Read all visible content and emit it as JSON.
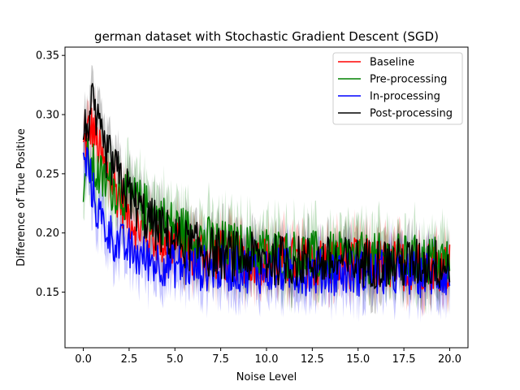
{
  "chart_data": {
    "type": "line",
    "title": "german dataset with Stochastic Gradient Descent (SGD)",
    "xlabel": "Noise Level",
    "ylabel": "Difference of True Positive",
    "xlim": [
      -1.0,
      21.0
    ],
    "ylim": [
      0.103,
      0.357
    ],
    "xticks": [
      0.0,
      2.5,
      5.0,
      7.5,
      10.0,
      12.5,
      15.0,
      17.5,
      20.0
    ],
    "xtick_labels": [
      "0.0",
      "2.5",
      "5.0",
      "7.5",
      "10.0",
      "12.5",
      "15.0",
      "17.5",
      "20.0"
    ],
    "yticks": [
      0.15,
      0.2,
      0.25,
      0.3,
      0.35
    ],
    "ytick_labels": [
      "0.15",
      "0.20",
      "0.25",
      "0.30",
      "0.35"
    ],
    "grid": false,
    "legend_position": "upper-right",
    "series": [
      {
        "name": "Baseline",
        "color": "#ff0000",
        "x": [
          0.0,
          0.25,
          0.5,
          0.75,
          1.0,
          1.5,
          2.0,
          2.5,
          3.0,
          4.0,
          5.0,
          6.0,
          7.0,
          8.0,
          9.0,
          10.0,
          11.0,
          12.0,
          13.0,
          14.0,
          15.0,
          16.0,
          17.0,
          18.0,
          19.0,
          20.0
        ],
        "values": [
          0.27,
          0.285,
          0.29,
          0.275,
          0.26,
          0.245,
          0.23,
          0.215,
          0.205,
          0.195,
          0.19,
          0.185,
          0.182,
          0.18,
          0.178,
          0.177,
          0.176,
          0.175,
          0.175,
          0.175,
          0.174,
          0.174,
          0.173,
          0.173,
          0.173,
          0.172
        ],
        "noise": 0.022,
        "band": 0.018
      },
      {
        "name": "Pre-processing",
        "color": "#008000",
        "x": [
          0.0,
          0.25,
          0.5,
          0.75,
          1.0,
          1.5,
          2.0,
          2.5,
          3.0,
          4.0,
          5.0,
          6.0,
          7.0,
          8.0,
          9.0,
          10.0,
          11.0,
          12.0,
          13.0,
          14.0,
          15.0,
          16.0,
          17.0,
          18.0,
          19.0,
          20.0
        ],
        "values": [
          0.245,
          0.26,
          0.255,
          0.25,
          0.245,
          0.24,
          0.235,
          0.23,
          0.225,
          0.215,
          0.205,
          0.198,
          0.192,
          0.188,
          0.186,
          0.184,
          0.182,
          0.181,
          0.18,
          0.179,
          0.179,
          0.178,
          0.178,
          0.177,
          0.177,
          0.176
        ],
        "noise": 0.022,
        "band": 0.022
      },
      {
        "name": "In-processing",
        "color": "#0000ff",
        "x": [
          0.0,
          0.25,
          0.5,
          0.75,
          1.0,
          1.5,
          2.0,
          2.5,
          3.0,
          4.0,
          5.0,
          6.0,
          7.0,
          8.0,
          9.0,
          10.0,
          11.0,
          12.0,
          13.0,
          14.0,
          15.0,
          16.0,
          17.0,
          18.0,
          19.0,
          20.0
        ],
        "values": [
          0.255,
          0.26,
          0.235,
          0.22,
          0.21,
          0.198,
          0.19,
          0.185,
          0.18,
          0.176,
          0.173,
          0.171,
          0.17,
          0.17,
          0.169,
          0.168,
          0.168,
          0.167,
          0.167,
          0.167,
          0.166,
          0.166,
          0.166,
          0.165,
          0.165,
          0.165
        ],
        "noise": 0.02,
        "band": 0.018
      },
      {
        "name": "Post-processing",
        "color": "#000000",
        "x": [
          0.0,
          0.25,
          0.5,
          0.75,
          1.0,
          1.5,
          2.0,
          2.5,
          3.0,
          4.0,
          5.0,
          6.0,
          7.0,
          8.0,
          9.0,
          10.0,
          11.0,
          12.0,
          13.0,
          14.0,
          15.0,
          16.0,
          17.0,
          18.0,
          19.0,
          20.0
        ],
        "values": [
          0.28,
          0.295,
          0.305,
          0.29,
          0.275,
          0.26,
          0.245,
          0.232,
          0.22,
          0.205,
          0.195,
          0.188,
          0.184,
          0.181,
          0.179,
          0.178,
          0.177,
          0.176,
          0.176,
          0.175,
          0.175,
          0.175,
          0.174,
          0.174,
          0.174,
          0.173
        ],
        "noise": 0.022,
        "band": 0.018
      }
    ]
  }
}
